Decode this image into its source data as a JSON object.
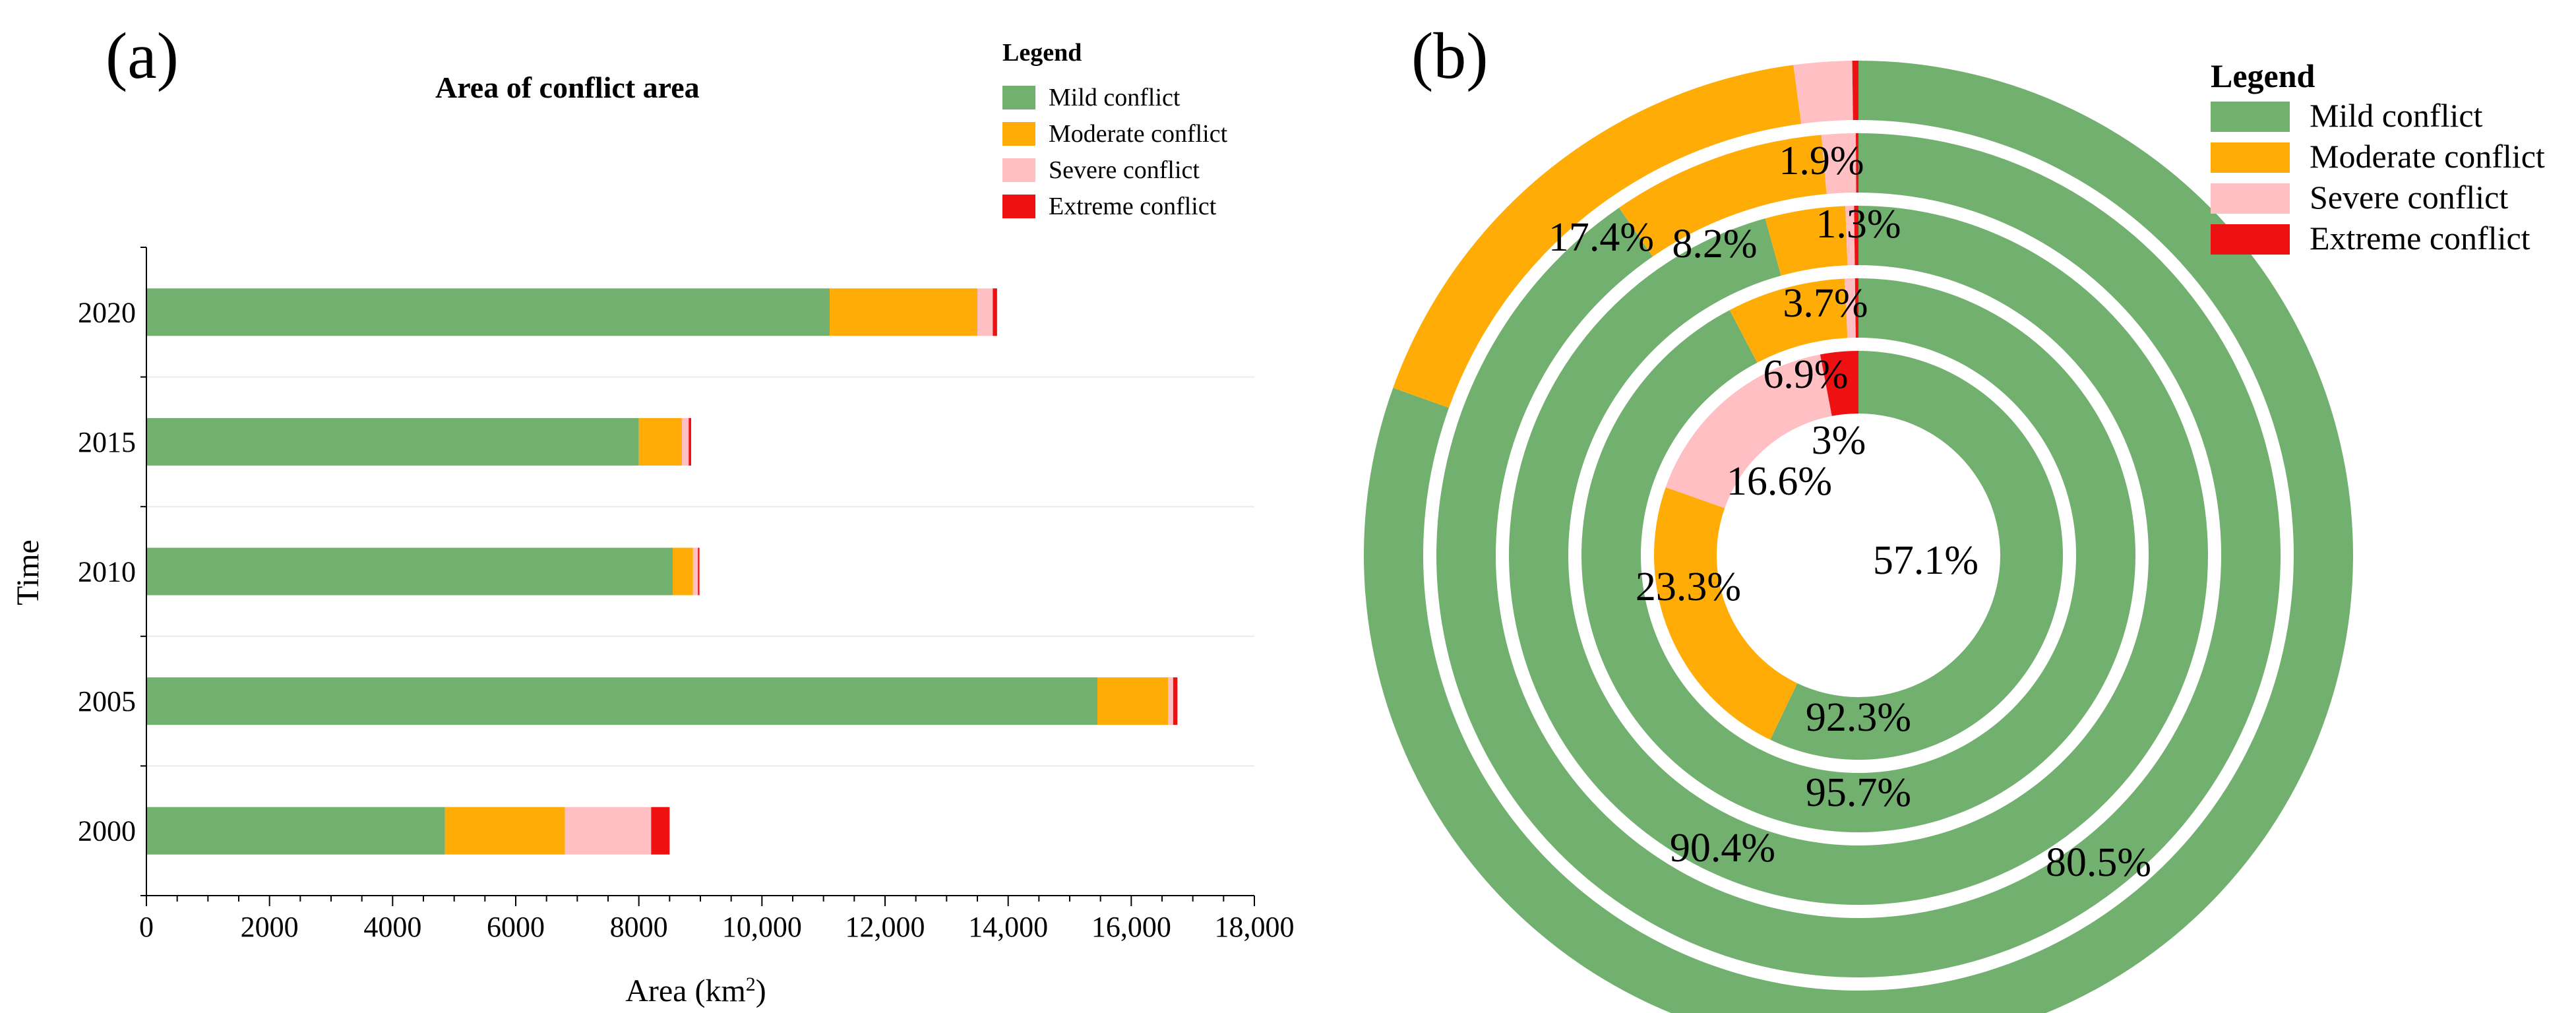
{
  "panel_a_label": "(a)",
  "panel_b_label": "(b)",
  "chart_data": [
    {
      "type": "bar",
      "orientation": "horizontal",
      "stacked": true,
      "title": "Area of conflict area",
      "xlabel_prefix": "Area (km",
      "xlabel_sup": "2",
      "xlabel_suffix": ")",
      "ylabel": "Time",
      "xlim": [
        0,
        18000
      ],
      "xticks": [
        0,
        2000,
        4000,
        6000,
        8000,
        10000,
        12000,
        14000,
        16000,
        18000
      ],
      "xtick_labels": [
        "0",
        "2000",
        "4000",
        "6000",
        "8000",
        "10,000",
        "12,000",
        "14,000",
        "16,000",
        "18,000"
      ],
      "categories": [
        "2020",
        "2015",
        "2010",
        "2005",
        "2000"
      ],
      "legend_title": "Legend",
      "series": [
        {
          "name": "Mild conflict",
          "color": "#72b06f",
          "values": [
            11100,
            8000,
            8550,
            15450,
            4850
          ]
        },
        {
          "name": "Moderate conflict",
          "color": "#ffac07",
          "values": [
            2400,
            700,
            330,
            1150,
            1950
          ]
        },
        {
          "name": "Severe conflict",
          "color": "#ffbfc3",
          "values": [
            250,
            110,
            80,
            80,
            1400
          ]
        },
        {
          "name": "Extreme conflict",
          "color": "#ee1111",
          "values": [
            70,
            40,
            25,
            70,
            300
          ]
        }
      ]
    },
    {
      "type": "pie",
      "variant": "nested-donut",
      "legend_title": "Legend",
      "categories": [
        "Mild conflict",
        "Moderate conflict",
        "Severe conflict",
        "Extreme conflict"
      ],
      "colors": [
        "#72b06f",
        "#ffac07",
        "#ffbfc3",
        "#ee1111"
      ],
      "rings": [
        {
          "ring": "innermost",
          "values": [
            57.1,
            23.3,
            16.6,
            3.0
          ],
          "labels": [
            "57.1%",
            "23.3%",
            "16.6%",
            "3%"
          ]
        },
        {
          "ring": "second",
          "values": [
            92.3,
            6.9,
            0.6,
            0.2
          ],
          "labels": [
            "92.3%",
            "6.9%",
            "",
            ""
          ]
        },
        {
          "ring": "third",
          "values": [
            95.7,
            3.7,
            0.4,
            0.2
          ],
          "labels": [
            "95.7%",
            "3.7%",
            "",
            ""
          ]
        },
        {
          "ring": "fourth",
          "values": [
            90.4,
            8.2,
            1.3,
            0.1
          ],
          "labels": [
            "90.4%",
            "8.2%",
            "1.3%",
            ""
          ]
        },
        {
          "ring": "outermost",
          "values": [
            80.5,
            17.4,
            1.9,
            0.2
          ],
          "labels": [
            "80.5%",
            "17.4%",
            "1.9%",
            ""
          ]
        }
      ]
    }
  ]
}
